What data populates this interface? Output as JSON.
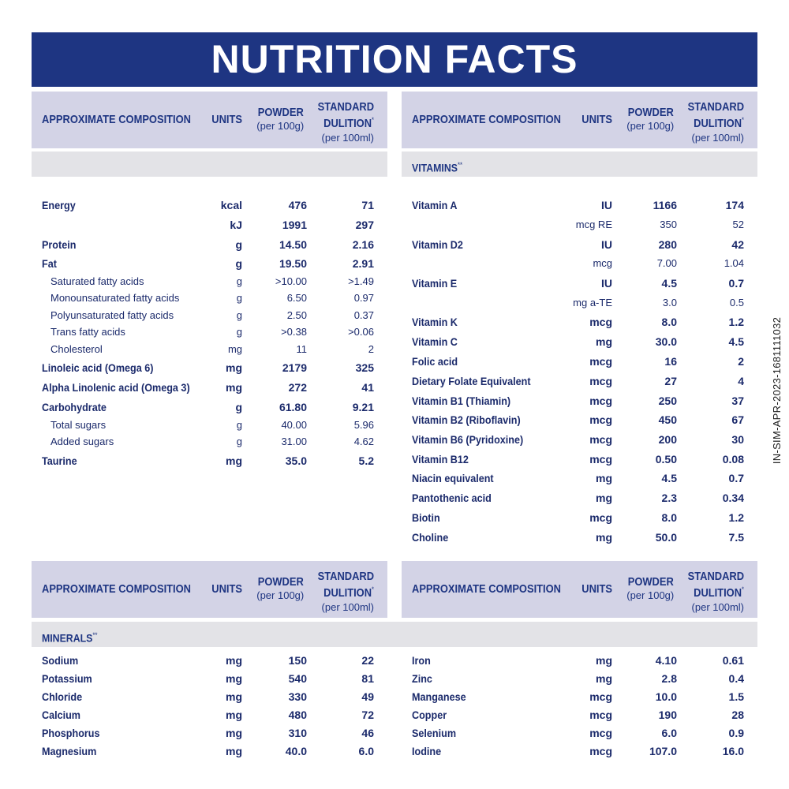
{
  "title": "NUTRITION FACTS",
  "header": {
    "composition": "APPROXIMATE COMPOSITION",
    "units": "UNITS",
    "powder": "POWDER",
    "powder_sub": "(per 100g)",
    "standard_l1": "STANDARD",
    "standard_l2": "DULITION",
    "standard_mark": "*",
    "standard_sub": "(per 100ml)"
  },
  "sections": {
    "vitamins": "VITAMINS",
    "minerals": "MINERALS",
    "marker": "**"
  },
  "side_code": "IN-SIM-APR-2023-1681111032",
  "composition_rows": [
    {
      "name": "Energy",
      "unit": "kcal",
      "powder": "476",
      "std": "71",
      "style": "bold"
    },
    {
      "name": "",
      "unit": "kJ",
      "powder": "1991",
      "std": "297",
      "style": "bold"
    },
    {
      "name": "Protein",
      "unit": "g",
      "powder": "14.50",
      "std": "2.16",
      "style": "bold"
    },
    {
      "name": "Fat",
      "unit": "g",
      "powder": "19.50",
      "std": "2.91",
      "style": "bold"
    },
    {
      "name": "Saturated fatty acids",
      "unit": "g",
      "powder": ">10.00",
      "std": ">1.49",
      "style": "sub"
    },
    {
      "name": "Monounsaturated fatty acids",
      "unit": "g",
      "powder": "6.50",
      "std": "0.97",
      "style": "sub"
    },
    {
      "name": "Polyunsaturated fatty acids",
      "unit": "g",
      "powder": "2.50",
      "std": "0.37",
      "style": "sub"
    },
    {
      "name": "Trans fatty acids",
      "unit": "g",
      "powder": ">0.38",
      "std": ">0.06",
      "style": "sub"
    },
    {
      "name": "Cholesterol",
      "unit": "mg",
      "powder": "11",
      "std": "2",
      "style": "sub"
    },
    {
      "name": "Linoleic acid (Omega 6)",
      "unit": "mg",
      "powder": "2179",
      "std": "325",
      "style": "bold"
    },
    {
      "name": "Alpha Linolenic acid (Omega 3)",
      "unit": "mg",
      "powder": "272",
      "std": "41",
      "style": "bold"
    },
    {
      "name": "Carbohydrate",
      "unit": "g",
      "powder": "61.80",
      "std": "9.21",
      "style": "bold"
    },
    {
      "name": "Total sugars",
      "unit": "g",
      "powder": "40.00",
      "std": "5.96",
      "style": "sub"
    },
    {
      "name": "Added sugars",
      "unit": "g",
      "powder": "31.00",
      "std": "4.62",
      "style": "sub"
    },
    {
      "name": "Taurine",
      "unit": "mg",
      "powder": "35.0",
      "std": "5.2",
      "style": "bold"
    }
  ],
  "vitamin_rows": [
    {
      "name": "Vitamin A",
      "unit": "IU",
      "powder": "1166",
      "std": "174",
      "style": "bold"
    },
    {
      "name": "",
      "unit": "mcg RE",
      "powder": "350",
      "std": "52",
      "style": "plain"
    },
    {
      "name": "Vitamin D2",
      "unit": "IU",
      "powder": "280",
      "std": "42",
      "style": "bold"
    },
    {
      "name": "",
      "unit": "mcg",
      "powder": "7.00",
      "std": "1.04",
      "style": "plain"
    },
    {
      "name": "Vitamin E",
      "unit": "IU",
      "powder": "4.5",
      "std": "0.7",
      "style": "bold"
    },
    {
      "name": "",
      "unit": "mg a-TE",
      "powder": "3.0",
      "std": "0.5",
      "style": "plain"
    },
    {
      "name": "Vitamin K",
      "unit": "mcg",
      "powder": "8.0",
      "std": "1.2",
      "style": "bold"
    },
    {
      "name": "Vitamin C",
      "unit": "mg",
      "powder": "30.0",
      "std": "4.5",
      "style": "bold"
    },
    {
      "name": "Folic acid",
      "unit": "mcg",
      "powder": "16",
      "std": "2",
      "style": "bold"
    },
    {
      "name": "Dietary Folate Equivalent",
      "unit": "mcg",
      "powder": "27",
      "std": "4",
      "style": "bold"
    },
    {
      "name": "Vitamin B1 (Thiamin)",
      "unit": "mcg",
      "powder": "250",
      "std": "37",
      "style": "bold"
    },
    {
      "name": "Vitamin B2 (Riboflavin)",
      "unit": "mcg",
      "powder": "450",
      "std": "67",
      "style": "bold"
    },
    {
      "name": "Vitamin B6 (Pyridoxine)",
      "unit": "mcg",
      "powder": "200",
      "std": "30",
      "style": "bold"
    },
    {
      "name": "Vitamin B12",
      "unit": "mcg",
      "powder": "0.50",
      "std": "0.08",
      "style": "bold"
    },
    {
      "name": "Niacin equivalent",
      "unit": "mg",
      "powder": "4.5",
      "std": "0.7",
      "style": "bold"
    },
    {
      "name": "Pantothenic acid",
      "unit": "mg",
      "powder": "2.3",
      "std": "0.34",
      "style": "bold"
    },
    {
      "name": "Biotin",
      "unit": "mcg",
      "powder": "8.0",
      "std": "1.2",
      "style": "bold"
    },
    {
      "name": "Choline",
      "unit": "mg",
      "powder": "50.0",
      "std": "7.5",
      "style": "bold"
    }
  ],
  "mineral_rows_left": [
    {
      "name": "Sodium",
      "unit": "mg",
      "powder": "150",
      "std": "22",
      "style": "bold"
    },
    {
      "name": "Potassium",
      "unit": "mg",
      "powder": "540",
      "std": "81",
      "style": "bold"
    },
    {
      "name": "Chloride",
      "unit": "mg",
      "powder": "330",
      "std": "49",
      "style": "bold"
    },
    {
      "name": "Calcium",
      "unit": "mg",
      "powder": "480",
      "std": "72",
      "style": "bold"
    },
    {
      "name": "Phosphorus",
      "unit": "mg",
      "powder": "310",
      "std": "46",
      "style": "bold"
    },
    {
      "name": "Magnesium",
      "unit": "mg",
      "powder": "40.0",
      "std": "6.0",
      "style": "bold"
    }
  ],
  "mineral_rows_right": [
    {
      "name": "Iron",
      "unit": "mg",
      "powder": "4.10",
      "std": "0.61",
      "style": "bold"
    },
    {
      "name": "Zinc",
      "unit": "mg",
      "powder": "2.8",
      "std": "0.4",
      "style": "bold"
    },
    {
      "name": "Manganese",
      "unit": "mcg",
      "powder": "10.0",
      "std": "1.5",
      "style": "bold"
    },
    {
      "name": "Copper",
      "unit": "mcg",
      "powder": "190",
      "std": "28",
      "style": "bold"
    },
    {
      "name": "Selenium",
      "unit": "mcg",
      "powder": "6.0",
      "std": "0.9",
      "style": "bold"
    },
    {
      "name": "Iodine",
      "unit": "mcg",
      "powder": "107.0",
      "std": "16.0",
      "style": "bold"
    }
  ]
}
